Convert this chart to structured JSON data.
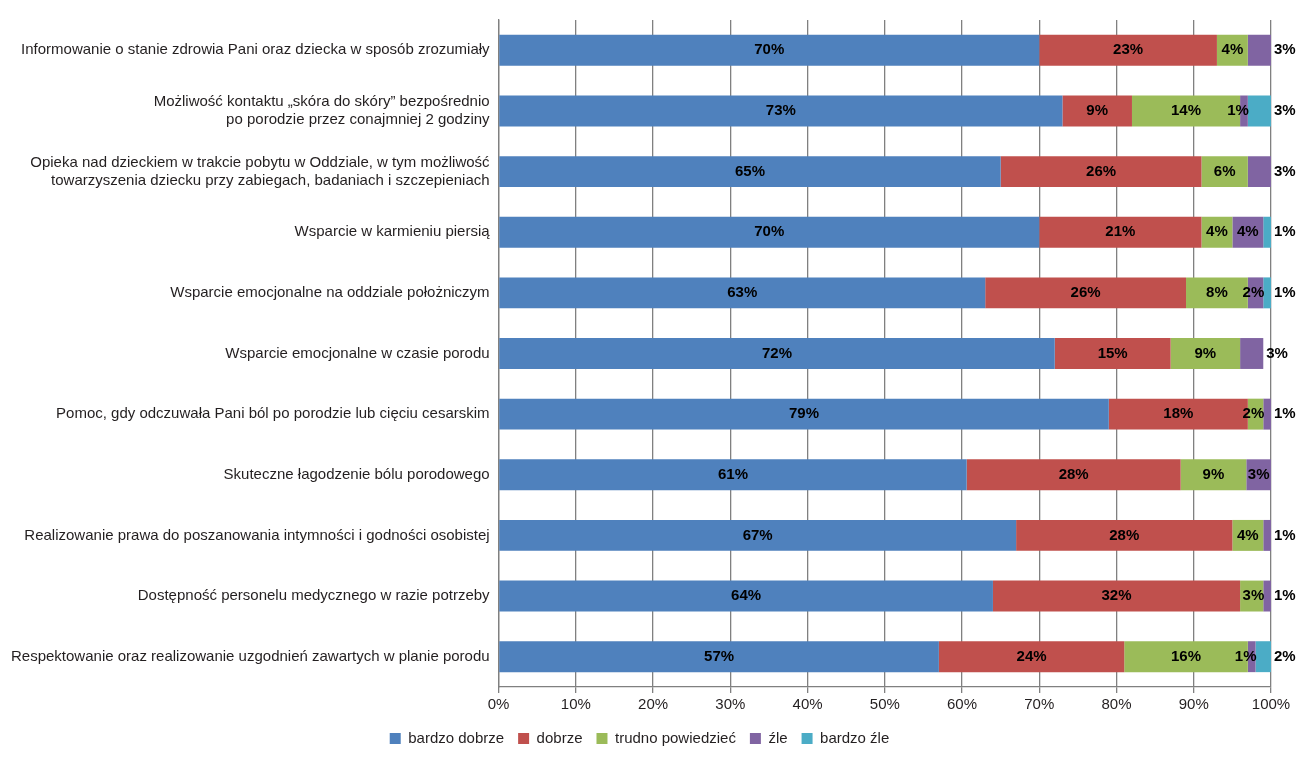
{
  "chart_data": {
    "type": "bar",
    "orientation": "horizontal",
    "stacked": true,
    "categories": [
      "Informowanie o stanie zdrowia Pani oraz dziecka w sposób zrozumiały",
      "Możliwość kontaktu „skóra do skóry” bezpośrednio po porodzie przez conajmniej 2 godziny",
      "Opieka nad dzieckiem w trakcie pobytu w Oddziale, w tym możliwość towarzyszenia dziecku przy zabiegach, badaniach i szczepieniach",
      "Wsparcie w karmieniu piersią",
      "Wsparcie emocjonalne na oddziale położniczym",
      "Wsparcie emocjonalne w czasie porodu",
      "Pomoc, gdy odczuwała Pani ból po porodzie lub cięciu cesarskim",
      "Skuteczne łagodzenie bólu porodowego",
      "Realizowanie prawa do poszanowania intymności i godności osobistej",
      "Dostępność personelu medycznego w razie potrzeby",
      "Respektowanie oraz realizowanie uzgodnień zawartych w planie porodu"
    ],
    "series": [
      {
        "name": "bardzo dobrze",
        "color": "#4f81bd",
        "values": [
          70,
          73,
          65,
          70,
          63,
          72,
          79,
          60.6,
          67,
          64,
          57
        ],
        "value_labels": [
          "70%",
          "73%",
          "65%",
          "70%",
          "63%",
          "72%",
          "79%",
          "61%",
          "67%",
          "64%",
          "57%"
        ]
      },
      {
        "name": "dobrze",
        "color": "#c0504d",
        "values": [
          23,
          9,
          26,
          21,
          26,
          15,
          18,
          27.7,
          28,
          32,
          24
        ],
        "value_labels": [
          "23%",
          "9%",
          "26%",
          "21%",
          "26%",
          "15%",
          "18%",
          "28%",
          "28%",
          "32%",
          "24%"
        ]
      },
      {
        "name": "trudno powiedzieć",
        "color": "#9bbb59",
        "values": [
          4,
          14,
          6,
          4,
          8,
          9,
          2,
          8.5,
          4,
          3,
          16
        ],
        "value_labels": [
          "4%",
          "14%",
          "6%",
          "4%",
          "8%",
          "9%",
          "2%",
          "9%",
          "4%",
          "3%",
          "16%"
        ]
      },
      {
        "name": "źle",
        "color": "#8064a2",
        "values": [
          3,
          1,
          3,
          4,
          2,
          3,
          1,
          3.2,
          1,
          1,
          1
        ],
        "value_labels": [
          "3%",
          "1%",
          "3%",
          "4%",
          "2%",
          "3%",
          "1%",
          "3%",
          "1%",
          "1%",
          "1%"
        ]
      },
      {
        "name": "bardzo źle",
        "color": "#4bacc6",
        "values": [
          null,
          3,
          null,
          1,
          1,
          null,
          null,
          null,
          null,
          null,
          2
        ],
        "value_labels": [
          null,
          "3%",
          null,
          "1%",
          "1%",
          null,
          null,
          null,
          null,
          null,
          "2%"
        ]
      }
    ],
    "xlim": [
      0,
      100
    ],
    "xticks": [
      {
        "value": 0,
        "label": "0%"
      },
      {
        "value": 10,
        "label": "10%"
      },
      {
        "value": 20,
        "label": "20%"
      },
      {
        "value": 30,
        "label": "30%"
      },
      {
        "value": 40,
        "label": "40%"
      },
      {
        "value": 50,
        "label": "50%"
      },
      {
        "value": 60,
        "label": "60%"
      },
      {
        "value": 70,
        "label": "70%"
      },
      {
        "value": 80,
        "label": "80%"
      },
      {
        "value": 90,
        "label": "90%"
      },
      {
        "value": 100,
        "label": "100%"
      }
    ],
    "grid": "x",
    "legend": "bottom"
  }
}
